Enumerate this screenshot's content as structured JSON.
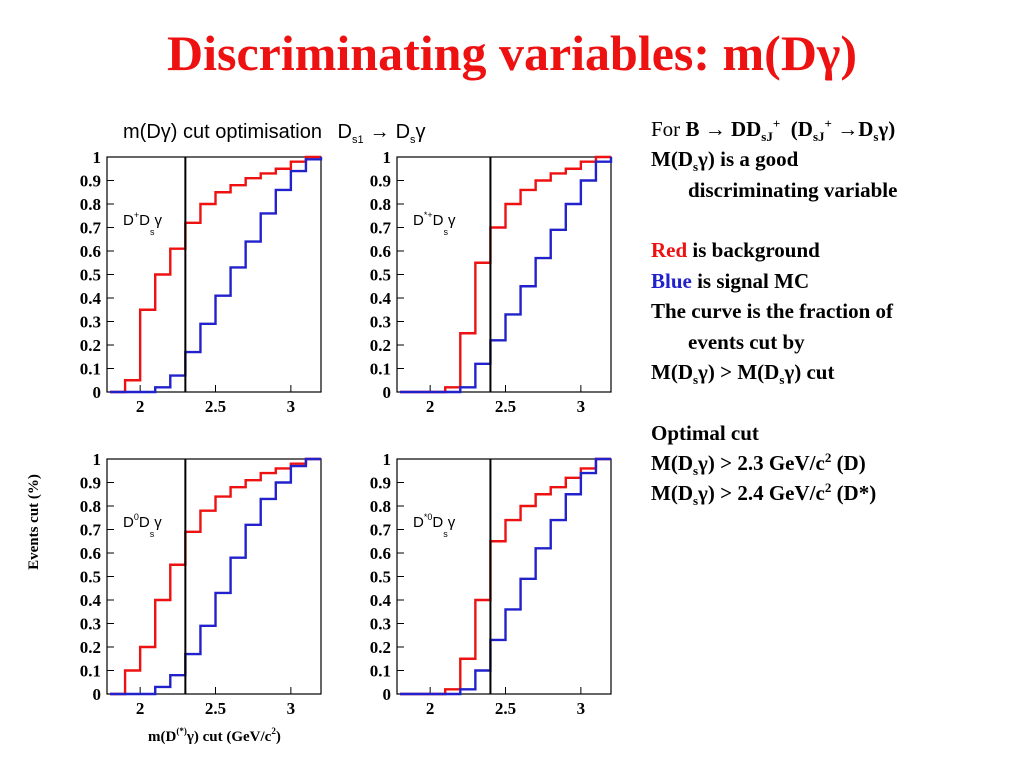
{
  "title": "Discriminating variables: m(Dγ)",
  "figure": {
    "title": "m(Dγ) cut optimisation",
    "title_reaction": {
      "d": "D",
      "s1": "s1",
      "arrow": "→",
      "s": "s",
      "gamma": "γ"
    },
    "ylabel": "Events cut (%)",
    "xlabel": "m(D",
    "xlabel_sup": "(*)",
    "xlabel_tail": "γ) cut (GeV/c",
    "xlabel_sup2": "2",
    "xlabel_close": ")",
    "yticks": [
      "1",
      "0.9",
      "0.8",
      "0.7",
      "0.6",
      "0.5",
      "0.4",
      "0.3",
      "0.2",
      "0.1",
      "0"
    ],
    "xticks": [
      "2",
      "2.5",
      "3"
    ],
    "panel_labels": [
      {
        "d": "D",
        "sup": "+",
        "s": "D",
        "sub": "s",
        "g": "γ"
      },
      {
        "d": "D",
        "sup": "*+",
        "s": "D",
        "sub": "s",
        "g": "γ"
      },
      {
        "d": "D",
        "sup": "0",
        "s": "D",
        "sub": "s",
        "g": "γ"
      },
      {
        "d": "D",
        "sup": "*0",
        "s": "D",
        "sub": "s",
        "g": "γ"
      }
    ]
  },
  "colors": {
    "title": "#ee1111",
    "background_curve": "#ee1111",
    "signal_curve": "#2222cc",
    "cut_line": "#000000"
  },
  "chart_data": [
    {
      "type": "line",
      "panel": "D+Dsγ",
      "xlim": [
        1.78,
        3.2
      ],
      "ylim": [
        0,
        1
      ],
      "cut": 2.3,
      "x": [
        1.8,
        1.9,
        2.0,
        2.1,
        2.2,
        2.3,
        2.4,
        2.5,
        2.6,
        2.7,
        2.8,
        2.9,
        3.0,
        3.1,
        3.2
      ],
      "series": [
        {
          "name": "Red",
          "values": [
            0,
            0.05,
            0.35,
            0.5,
            0.61,
            0.72,
            0.8,
            0.85,
            0.88,
            0.91,
            0.93,
            0.95,
            0.98,
            1.0,
            1.0
          ]
        },
        {
          "name": "Blue",
          "values": [
            0,
            0,
            0,
            0.02,
            0.07,
            0.17,
            0.29,
            0.41,
            0.53,
            0.64,
            0.76,
            0.86,
            0.94,
            0.99,
            1.0
          ]
        }
      ]
    },
    {
      "type": "line",
      "panel": "D*+Dsγ",
      "xlim": [
        1.78,
        3.2
      ],
      "ylim": [
        0,
        1
      ],
      "cut": 2.4,
      "x": [
        1.8,
        1.9,
        2.0,
        2.1,
        2.2,
        2.3,
        2.4,
        2.5,
        2.6,
        2.7,
        2.8,
        2.9,
        3.0,
        3.1,
        3.2
      ],
      "series": [
        {
          "name": "Red",
          "values": [
            0,
            0,
            0,
            0.02,
            0.25,
            0.55,
            0.7,
            0.8,
            0.86,
            0.9,
            0.93,
            0.95,
            0.98,
            1.0,
            1.0
          ]
        },
        {
          "name": "Blue",
          "values": [
            0,
            0,
            0,
            0,
            0.02,
            0.12,
            0.22,
            0.33,
            0.45,
            0.57,
            0.69,
            0.8,
            0.9,
            0.98,
            1.0
          ]
        }
      ]
    },
    {
      "type": "line",
      "panel": "D0Dsγ",
      "xlim": [
        1.78,
        3.2
      ],
      "ylim": [
        0,
        1
      ],
      "cut": 2.3,
      "x": [
        1.8,
        1.9,
        2.0,
        2.1,
        2.2,
        2.3,
        2.4,
        2.5,
        2.6,
        2.7,
        2.8,
        2.9,
        3.0,
        3.1,
        3.2
      ],
      "series": [
        {
          "name": "Red",
          "values": [
            0,
            0.1,
            0.2,
            0.4,
            0.55,
            0.69,
            0.78,
            0.84,
            0.88,
            0.91,
            0.94,
            0.96,
            0.98,
            1.0,
            1.0
          ]
        },
        {
          "name": "Blue",
          "values": [
            0,
            0,
            0,
            0.03,
            0.08,
            0.17,
            0.29,
            0.43,
            0.58,
            0.72,
            0.83,
            0.9,
            0.97,
            1.0,
            1.0
          ]
        }
      ]
    },
    {
      "type": "line",
      "panel": "D*0Dsγ",
      "xlim": [
        1.78,
        3.2
      ],
      "ylim": [
        0,
        1
      ],
      "cut": 2.4,
      "x": [
        1.8,
        1.9,
        2.0,
        2.1,
        2.2,
        2.3,
        2.4,
        2.5,
        2.6,
        2.7,
        2.8,
        2.9,
        3.0,
        3.1,
        3.2
      ],
      "series": [
        {
          "name": "Red",
          "values": [
            0,
            0,
            0,
            0.02,
            0.15,
            0.4,
            0.65,
            0.74,
            0.8,
            0.85,
            0.88,
            0.92,
            0.96,
            1.0,
            1.0
          ]
        },
        {
          "name": "Blue",
          "values": [
            0,
            0,
            0,
            0,
            0.02,
            0.1,
            0.23,
            0.36,
            0.49,
            0.62,
            0.74,
            0.85,
            0.94,
            1.0,
            1.0
          ]
        }
      ]
    }
  ],
  "notes": {
    "line1": {
      "prefix": "For ",
      "b": "B",
      "arrow1": "→",
      "dd": "DD",
      "sj": "sJ",
      "plus": "+",
      "open": "(D",
      "sj2": "sJ",
      "plus2": "+",
      "arrow2": "→",
      "ds": "D",
      "s": "s",
      "gamma": "γ)"
    },
    "line2": {
      "m": "M(D",
      "s": "s",
      "rest": "γ) is a good"
    },
    "line3": "discriminating variable",
    "red_word": "Red",
    "red_rest": "is background",
    "blue_word": "Blue",
    "blue_rest": "is signal MC",
    "curve1": "The curve is the fraction of",
    "curve2": "events cut by",
    "cut_line": {
      "m1": "M(D",
      "s1": "s",
      "mid": "γ) > M(D",
      "s2": "s",
      "end": "γ) cut"
    },
    "optimal": "Optimal cut",
    "opt1": {
      "m": "M(D",
      "s": "s",
      "rest": "γ) > 2.3 GeV/c",
      "sup": "2",
      "tail": "(D)"
    },
    "opt2": {
      "m": "M(D",
      "s": "s",
      "rest": "γ) > 2.4 GeV/c",
      "sup": "2",
      "tail": "(D*)"
    }
  }
}
